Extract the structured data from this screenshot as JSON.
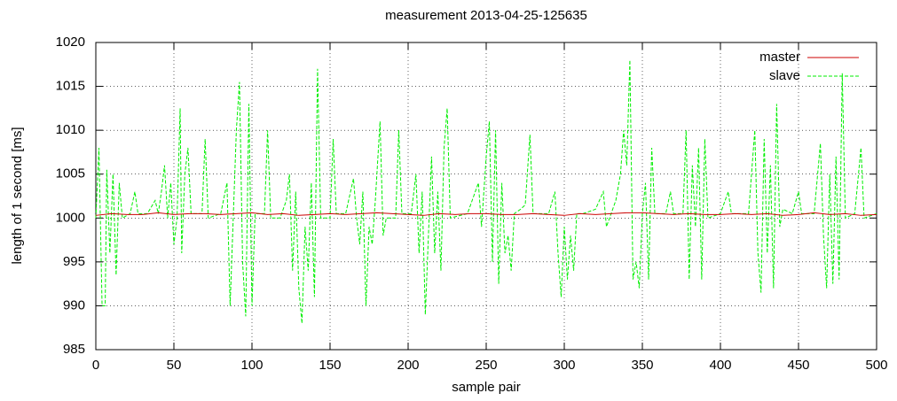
{
  "chart_data": {
    "type": "line",
    "title": "measurement 2013-04-25-125635",
    "x_label": "sample pair",
    "y_label": "length of 1 second [ms]",
    "xlim": [
      0,
      500
    ],
    "ylim": [
      985,
      1020
    ],
    "xticks": [
      0,
      50,
      100,
      150,
      200,
      250,
      300,
      350,
      400,
      450,
      500
    ],
    "yticks": [
      985,
      990,
      995,
      1000,
      1005,
      1010,
      1015,
      1020
    ],
    "grid": true,
    "legend": "top right",
    "series": [
      {
        "name": "master",
        "color": "#cc0000",
        "dash": "solid",
        "x": [
          0,
          10,
          20,
          30,
          40,
          50,
          60,
          70,
          80,
          90,
          100,
          110,
          120,
          130,
          140,
          150,
          160,
          170,
          180,
          190,
          200,
          210,
          220,
          230,
          240,
          250,
          260,
          270,
          280,
          290,
          300,
          310,
          320,
          330,
          340,
          350,
          360,
          370,
          380,
          390,
          400,
          410,
          420,
          430,
          440,
          450,
          460,
          470,
          480,
          490,
          500
        ],
        "values": [
          1000.3,
          1000.5,
          1000.4,
          1000.4,
          1000.6,
          1000.4,
          1000.5,
          1000.5,
          1000.4,
          1000.5,
          1000.6,
          1000.4,
          1000.5,
          1000.3,
          1000.4,
          1000.5,
          1000.4,
          1000.5,
          1000.6,
          1000.5,
          1000.4,
          1000.3,
          1000.5,
          1000.4,
          1000.5,
          1000.5,
          1000.4,
          1000.4,
          1000.5,
          1000.4,
          1000.3,
          1000.5,
          1000.4,
          1000.5,
          1000.6,
          1000.6,
          1000.5,
          1000.4,
          1000.5,
          1000.4,
          1000.4,
          1000.5,
          1000.4,
          1000.5,
          1000.3,
          1000.4,
          1000.6,
          1000.4,
          1000.5,
          1000.3,
          1000.4
        ]
      },
      {
        "name": "slave",
        "color": "#00ee00",
        "dash": "dashed",
        "x": [
          0,
          2,
          4,
          6,
          7,
          9,
          11,
          13,
          15,
          17,
          22,
          25,
          27,
          33,
          38,
          40,
          42,
          44,
          46,
          48,
          50,
          52,
          54,
          55,
          57,
          59,
          61,
          68,
          70,
          72,
          80,
          84,
          86,
          88,
          90,
          92,
          94,
          96,
          98,
          100,
          102,
          108,
          110,
          112,
          118,
          122,
          124,
          126,
          128,
          130,
          132,
          134,
          136,
          138,
          140,
          142,
          144,
          150,
          152,
          154,
          160,
          165,
          167,
          169,
          171,
          173,
          175,
          177,
          179,
          182,
          184,
          186,
          192,
          194,
          196,
          202,
          205,
          207,
          209,
          211,
          213,
          215,
          217,
          219,
          221,
          223,
          225,
          227,
          238,
          245,
          247,
          250,
          252,
          254,
          256,
          258,
          260,
          262,
          264,
          266,
          268,
          272,
          275,
          278,
          280,
          290,
          294,
          296,
          298,
          300,
          302,
          304,
          306,
          308,
          312,
          320,
          325,
          327,
          333,
          336,
          338,
          340,
          342,
          344,
          346,
          348,
          350,
          352,
          354,
          356,
          358,
          365,
          368,
          370,
          376,
          378,
          380,
          382,
          384,
          386,
          388,
          390,
          392,
          400,
          405,
          407,
          418,
          422,
          424,
          426,
          428,
          430,
          432,
          434,
          436,
          438,
          440,
          446,
          450,
          452,
          460,
          464,
          466,
          468,
          470,
          472,
          474,
          476,
          478,
          480,
          486,
          490,
          492,
          500
        ],
        "values": [
          1000,
          1008,
          990,
          990,
          1005.5,
          996,
          1005,
          993.5,
          1004,
          1000,
          1000.5,
          1003,
          1000.5,
          1000.5,
          1002,
          1000.5,
          1003,
          1006,
          1000,
          1004,
          997,
          1000,
          1012.5,
          996,
          1005,
          1008,
          1000.5,
          1000.5,
          1009,
          1000,
          1000.5,
          1004,
          990,
          1000,
          1010,
          1015.5,
          995,
          988.8,
          1013,
          990,
          1000.5,
          1000.5,
          1010,
          1000,
          1000,
          1002,
          1005,
          994,
          1003,
          992,
          988,
          999,
          994,
          1004,
          991,
          1017,
          1000,
          1000,
          1009,
          1000.5,
          1000.5,
          1004.5,
          1000,
          997,
          1003,
          990,
          999,
          997,
          1002,
          1011,
          998,
          1000,
          1000,
          1010,
          1000.5,
          1000.5,
          1005,
          996,
          1003,
          989,
          998,
          1007,
          996,
          1003,
          994,
          1008,
          1012.5,
          1000,
          1000.5,
          1004,
          999,
          1007,
          1011,
          995,
          1010,
          992.5,
          1004,
          996,
          998,
          994,
          1000.5,
          1001,
          1001.5,
          1009.5,
          1000.5,
          1000.5,
          1003,
          996,
          991,
          999,
          993,
          998,
          994,
          1000.5,
          1000.5,
          1001,
          1003,
          999,
          1002,
          1005,
          1010,
          1006,
          1018,
          993,
          995,
          992,
          1000.5,
          1004,
          993,
          1008,
          1000.5,
          1000.5,
          1003,
          1000.5,
          1000.5,
          1010,
          993,
          1006,
          999,
          1008,
          993,
          1009,
          1000,
          1000.5,
          1003,
          1000.5,
          1000.5,
          1010,
          996,
          991.5,
          1009,
          996,
          1006,
          992,
          1013,
          999,
          1001,
          1000.5,
          1003,
          1000.5,
          1000.5,
          1008.5,
          998,
          992,
          1005,
          992.5,
          1007,
          993,
          1016.5,
          1000,
          1000.5,
          1008,
          1000,
          1000.5
        ]
      }
    ]
  }
}
